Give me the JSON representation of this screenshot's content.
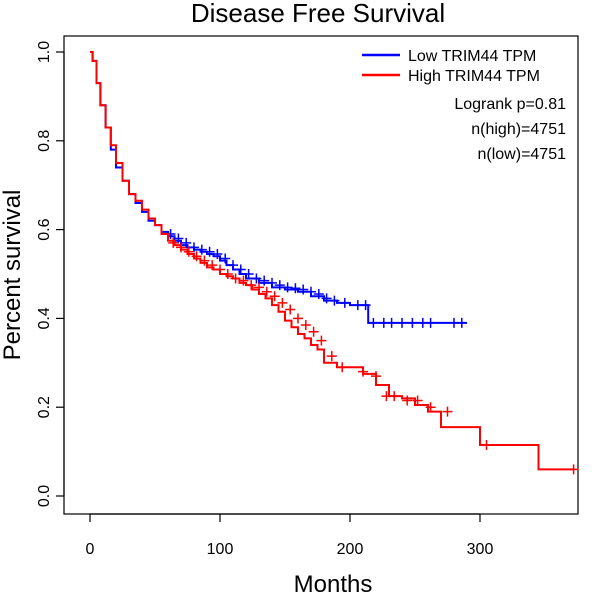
{
  "chart_data": {
    "type": "line",
    "title": "Disease Free Survival",
    "xlabel": "Months",
    "ylabel": "Percent survival",
    "xlim": [
      0,
      375
    ],
    "ylim": [
      0,
      1.0
    ],
    "x_ticks": [
      0,
      100,
      200,
      300
    ],
    "y_ticks": [
      0.0,
      0.2,
      0.4,
      0.6,
      0.8,
      1.0
    ],
    "y_tick_labels": [
      "0.0",
      "0.2",
      "0.4",
      "0.6",
      "0.8",
      "1.0"
    ],
    "legend_position": "top-right",
    "grid": false,
    "stats": {
      "logrank": "Logrank p=0.81",
      "n_high": "n(high)=4751",
      "n_low": "n(low)=4751"
    },
    "series": [
      {
        "name": "Low TRIM44 TPM",
        "color": "#0000ff",
        "x": [
          0,
          2,
          5,
          8,
          12,
          16,
          20,
          25,
          30,
          35,
          40,
          45,
          50,
          55,
          60,
          65,
          70,
          75,
          80,
          85,
          90,
          95,
          100,
          105,
          110,
          115,
          120,
          130,
          140,
          150,
          160,
          170,
          180,
          190,
          200,
          210,
          214,
          220,
          240,
          260,
          280,
          290
        ],
        "y": [
          1.0,
          0.98,
          0.93,
          0.88,
          0.83,
          0.78,
          0.74,
          0.71,
          0.68,
          0.66,
          0.64,
          0.62,
          0.61,
          0.595,
          0.585,
          0.575,
          0.565,
          0.56,
          0.555,
          0.55,
          0.545,
          0.54,
          0.53,
          0.52,
          0.51,
          0.5,
          0.49,
          0.48,
          0.47,
          0.465,
          0.46,
          0.45,
          0.44,
          0.435,
          0.43,
          0.43,
          0.39,
          0.39,
          0.39,
          0.39,
          0.39,
          0.39
        ],
        "censor_x": [
          62,
          68,
          74,
          80,
          86,
          92,
          98,
          104,
          110,
          116,
          122,
          128,
          134,
          140,
          146,
          152,
          158,
          164,
          170,
          176,
          182,
          188,
          196,
          206,
          212,
          218,
          226,
          232,
          240,
          248,
          256,
          262,
          280,
          286
        ],
        "censor_y": [
          0.59,
          0.58,
          0.57,
          0.56,
          0.555,
          0.55,
          0.545,
          0.535,
          0.52,
          0.51,
          0.5,
          0.49,
          0.485,
          0.48,
          0.475,
          0.47,
          0.468,
          0.465,
          0.46,
          0.455,
          0.445,
          0.44,
          0.435,
          0.43,
          0.43,
          0.39,
          0.39,
          0.39,
          0.39,
          0.39,
          0.39,
          0.39,
          0.39,
          0.39
        ]
      },
      {
        "name": "High TRIM44 TPM",
        "color": "#ff0000",
        "x": [
          0,
          2,
          5,
          8,
          12,
          16,
          20,
          25,
          30,
          35,
          40,
          45,
          50,
          55,
          60,
          65,
          70,
          75,
          80,
          85,
          90,
          95,
          100,
          105,
          110,
          115,
          120,
          125,
          130,
          135,
          140,
          145,
          150,
          155,
          160,
          165,
          170,
          175,
          180,
          190,
          200,
          210,
          220,
          225,
          230,
          240,
          250,
          260,
          270,
          280,
          290,
          300,
          310,
          320,
          330,
          340,
          345,
          355,
          365,
          372
        ],
        "y": [
          1.0,
          0.98,
          0.93,
          0.88,
          0.83,
          0.79,
          0.75,
          0.71,
          0.68,
          0.665,
          0.645,
          0.625,
          0.61,
          0.59,
          0.575,
          0.565,
          0.555,
          0.545,
          0.535,
          0.525,
          0.515,
          0.51,
          0.5,
          0.495,
          0.49,
          0.48,
          0.475,
          0.465,
          0.455,
          0.445,
          0.43,
          0.415,
          0.395,
          0.38,
          0.365,
          0.355,
          0.34,
          0.33,
          0.3,
          0.29,
          0.29,
          0.275,
          0.25,
          0.25,
          0.225,
          0.22,
          0.205,
          0.19,
          0.155,
          0.155,
          0.155,
          0.115,
          0.115,
          0.115,
          0.115,
          0.115,
          0.06,
          0.06,
          0.06,
          0.06
        ],
        "censor_x": [
          64,
          70,
          76,
          82,
          88,
          94,
          100,
          106,
          112,
          118,
          124,
          130,
          136,
          142,
          148,
          154,
          160,
          166,
          172,
          178,
          186,
          194,
          210,
          220,
          228,
          234,
          244,
          252,
          262,
          275,
          305,
          372
        ],
        "censor_y": [
          0.57,
          0.56,
          0.55,
          0.54,
          0.53,
          0.52,
          0.51,
          0.5,
          0.49,
          0.485,
          0.475,
          0.47,
          0.46,
          0.45,
          0.435,
          0.42,
          0.4,
          0.385,
          0.37,
          0.35,
          0.315,
          0.29,
          0.28,
          0.27,
          0.225,
          0.225,
          0.215,
          0.215,
          0.2,
          0.19,
          0.115,
          0.06
        ]
      }
    ]
  }
}
